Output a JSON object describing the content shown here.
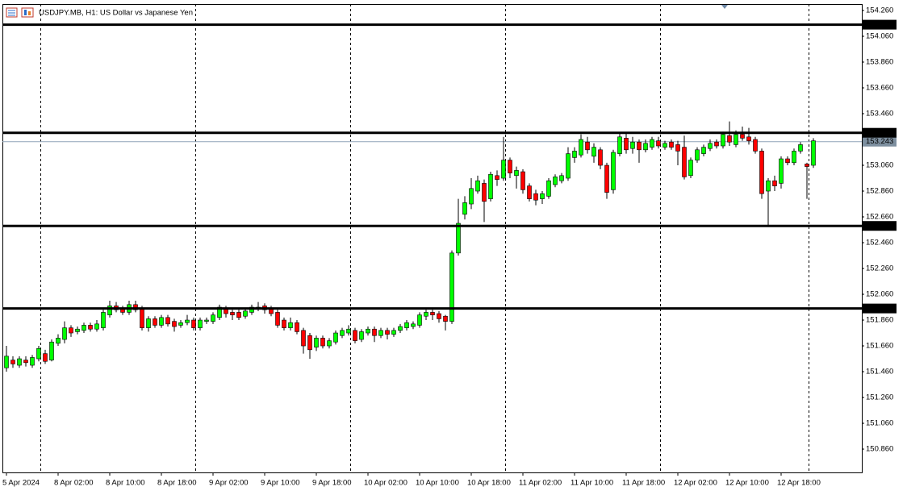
{
  "chart_data": {
    "type": "candlestick",
    "title": "USDJPY.MB, H1:  US Dollar vs Japanese Yen",
    "categories": [
      "5 Apr 2024",
      null,
      null,
      null,
      null,
      null,
      null,
      null,
      "8 Apr 02:00",
      null,
      null,
      null,
      null,
      null,
      null,
      null,
      "8 Apr 10:00",
      null,
      null,
      null,
      null,
      null,
      null,
      null,
      "8 Apr 18:00",
      null,
      null,
      null,
      null,
      null,
      null,
      null,
      "9 Apr 02:00",
      null,
      null,
      null,
      null,
      null,
      null,
      null,
      "9 Apr 10:00",
      null,
      null,
      null,
      null,
      null,
      null,
      null,
      "9 Apr 18:00",
      null,
      null,
      null,
      null,
      null,
      null,
      null,
      "10 Apr 02:00",
      null,
      null,
      null,
      null,
      null,
      null,
      null,
      "10 Apr 10:00",
      null,
      null,
      null,
      null,
      null,
      null,
      null,
      "10 Apr 18:00",
      null,
      null,
      null,
      null,
      null,
      null,
      null,
      "11 Apr 02:00",
      null,
      null,
      null,
      null,
      null,
      null,
      null,
      "11 Apr 10:00",
      null,
      null,
      null,
      null,
      null,
      null,
      null,
      "11 Apr 18:00",
      null,
      null,
      null,
      null,
      null,
      null,
      null,
      "12 Apr 02:00",
      null,
      null,
      null,
      null,
      null,
      null,
      null,
      "12 Apr 10:00",
      null,
      null,
      null,
      null,
      null,
      null,
      null,
      "12 Apr 18:00",
      null,
      null,
      null,
      null,
      null
    ],
    "open": [
      151.49,
      151.55,
      151.51,
      151.55,
      151.51,
      151.56,
      151.6,
      151.55,
      151.68,
      151.71,
      151.8,
      151.77,
      151.78,
      151.82,
      151.79,
      151.8,
      151.9,
      151.97,
      151.95,
      151.92,
      151.98,
      151.95,
      151.8,
      151.87,
      151.82,
      151.88,
      151.85,
      151.82,
      151.84,
      151.86,
      151.8,
      151.85,
      151.85,
      151.88,
      151.95,
      151.92,
      151.92,
      151.89,
      151.92,
      151.95,
      151.97,
      151.95,
      151.92,
      151.86,
      151.8,
      151.84,
      151.78,
      151.74,
      151.65,
      151.72,
      151.66,
      151.69,
      151.74,
      151.76,
      151.78,
      151.71,
      151.76,
      151.79,
      151.74,
      151.78,
      151.75,
      151.78,
      151.8,
      151.81,
      151.82,
      151.89,
      151.92,
      151.91,
      151.89,
      151.85,
      152.38,
      152.68,
      152.76,
      152.86,
      152.92,
      152.8,
      152.98,
      152.96,
      153.1,
      152.98,
      153.01,
      152.9,
      152.84,
      152.8,
      152.82,
      152.91,
      152.94,
      152.96,
      153.12,
      153.14,
      153.24,
      153.13,
      153.18,
      153.06,
      152.87,
      153.15,
      153.27,
      153.19,
      153.24,
      153.18,
      153.2,
      153.25,
      153.2,
      153.24,
      153.22,
      153.2,
      152.98,
      153.1,
      153.15,
      153.19,
      153.24,
      153.21,
      153.29,
      153.22,
      153.3,
      153.28,
      153.26,
      153.17,
      152.86,
      152.94,
      152.92,
      153.11,
      153.08,
      153.17,
      153.07,
      153.06
    ],
    "high": [
      151.66,
      151.58,
      151.58,
      151.58,
      151.59,
      151.66,
      151.63,
      151.71,
      151.75,
      151.85,
      151.82,
      151.81,
      151.84,
      151.84,
      151.86,
      151.94,
      152.01,
      152.0,
      151.97,
      152.01,
      152.01,
      151.97,
      151.89,
      151.89,
      151.9,
      151.9,
      151.87,
      151.86,
      151.9,
      151.88,
      151.88,
      151.88,
      151.92,
      151.98,
      151.97,
      151.94,
      151.94,
      151.95,
      151.98,
      152.0,
      151.99,
      151.97,
      151.94,
      151.88,
      151.88,
      151.86,
      151.8,
      151.76,
      151.74,
      151.74,
      151.72,
      151.78,
      151.8,
      151.82,
      151.8,
      151.79,
      151.81,
      151.81,
      151.8,
      151.8,
      151.8,
      151.83,
      151.86,
      151.85,
      151.92,
      151.94,
      151.94,
      151.93,
      151.9,
      152.4,
      152.8,
      152.82,
      152.96,
      152.98,
      152.95,
      153.01,
      153.02,
      153.28,
      153.12,
      153.05,
      153.03,
      152.92,
      152.87,
      152.86,
      152.96,
      152.99,
      153.0,
      153.2,
      153.2,
      153.3,
      153.28,
      153.23,
      153.2,
      153.08,
      153.18,
      153.31,
      153.31,
      153.28,
      153.26,
      153.26,
      153.28,
      153.28,
      153.25,
      153.26,
      153.25,
      153.29,
      153.12,
      153.2,
      153.22,
      153.26,
      153.26,
      153.32,
      153.4,
      153.33,
      153.36,
      153.35,
      153.28,
      153.19,
      152.96,
      152.98,
      153.13,
      153.13,
      153.19,
      153.24,
      153.08,
      153.27
    ],
    "low": [
      151.46,
      151.49,
      151.49,
      151.5,
      151.49,
      151.54,
      151.52,
      151.54,
      151.66,
      151.68,
      151.73,
      151.75,
      151.76,
      151.77,
      151.77,
      151.78,
      151.88,
      151.92,
      151.9,
      151.9,
      151.92,
      151.78,
      151.77,
      151.8,
      151.8,
      151.81,
      151.77,
      151.8,
      151.82,
      151.78,
      151.78,
      151.83,
      151.83,
      151.86,
      151.88,
      151.86,
      151.86,
      151.87,
      151.9,
      151.93,
      151.91,
      151.89,
      151.8,
      151.78,
      151.78,
      151.75,
      151.6,
      151.56,
      151.62,
      151.64,
      151.64,
      151.67,
      151.72,
      151.74,
      151.68,
      151.69,
      151.74,
      151.69,
      151.72,
      151.71,
      151.73,
      151.76,
      151.78,
      151.79,
      151.8,
      151.86,
      151.86,
      151.84,
      151.78,
      151.83,
      152.36,
      152.64,
      152.72,
      152.84,
      152.62,
      152.78,
      152.9,
      152.94,
      152.96,
      152.88,
      152.84,
      152.78,
      152.75,
      152.76,
      152.8,
      152.89,
      152.92,
      152.94,
      153.08,
      153.12,
      153.15,
      153.08,
      153.03,
      152.8,
      152.84,
      153.13,
      153.15,
      153.15,
      153.08,
      153.16,
      153.18,
      153.19,
      153.18,
      153.18,
      153.06,
      152.95,
      152.96,
      153.08,
      153.13,
      153.17,
      153.19,
      153.19,
      153.21,
      153.2,
      153.25,
      153.22,
      153.15,
      152.8,
      152.59,
      152.86,
      152.88,
      153.06,
      153.06,
      153.15,
      152.8,
      153.04
    ],
    "close": [
      151.58,
      151.52,
      151.56,
      151.53,
      151.57,
      151.64,
      151.54,
      151.69,
      151.72,
      151.8,
      151.76,
      151.79,
      151.82,
      151.79,
      151.83,
      151.92,
      151.97,
      151.94,
      151.92,
      151.98,
      151.94,
      151.8,
      151.87,
      151.82,
      151.88,
      151.83,
      151.81,
      151.84,
      151.86,
      151.8,
      151.86,
      151.86,
      151.9,
      151.96,
      151.91,
      151.9,
      151.88,
      151.93,
      151.96,
      151.96,
      151.94,
      151.91,
      151.82,
      151.8,
      151.84,
      151.77,
      151.66,
      151.63,
      151.72,
      151.66,
      151.7,
      151.76,
      151.78,
      151.79,
      151.7,
      151.77,
      151.79,
      151.74,
      151.78,
      151.75,
      151.78,
      151.81,
      151.84,
      151.83,
      151.9,
      151.92,
      151.9,
      151.87,
      151.85,
      152.38,
      152.61,
      152.77,
      152.88,
      152.94,
      152.78,
      152.99,
      152.95,
      153.1,
      153.0,
      153.02,
      152.87,
      152.8,
      152.79,
      152.84,
      152.94,
      152.97,
      152.98,
      153.15,
      153.17,
      153.26,
      153.18,
      153.2,
      153.06,
      152.85,
      153.16,
      153.28,
      153.18,
      153.24,
      153.18,
      153.23,
      153.26,
      153.21,
      153.23,
      153.2,
      153.17,
      152.97,
      153.1,
      153.18,
      153.2,
      153.23,
      153.21,
      153.3,
      153.24,
      153.3,
      153.27,
      153.25,
      153.17,
      152.84,
      152.94,
      152.9,
      153.11,
      153.08,
      153.17,
      153.22,
      153.05,
      153.25
    ],
    "up_color": "#00ff00",
    "down_color": "#ff0000",
    "ylim": [
      150.679,
      154.31
    ],
    "yticks": [
      {
        "value": 154.26,
        "label": "154.260"
      },
      {
        "value": 154.06,
        "label": "154.060"
      },
      {
        "value": 153.86,
        "label": "153.860"
      },
      {
        "value": 153.66,
        "label": "153.660"
      },
      {
        "value": 153.46,
        "label": "153.460"
      },
      {
        "value": 153.26,
        "label": "153.260"
      },
      {
        "value": 153.06,
        "label": "153.060"
      },
      {
        "value": 152.86,
        "label": "152.860"
      },
      {
        "value": 152.66,
        "label": "152.660"
      },
      {
        "value": 152.46,
        "label": "152.460"
      },
      {
        "value": 152.26,
        "label": "152.260"
      },
      {
        "value": 152.06,
        "label": "152.060"
      },
      {
        "value": 151.86,
        "label": "151.860"
      },
      {
        "value": 151.66,
        "label": "151.660"
      },
      {
        "value": 151.46,
        "label": "151.460"
      },
      {
        "value": 151.26,
        "label": "151.260"
      },
      {
        "value": 151.06,
        "label": "151.060"
      },
      {
        "value": 150.86,
        "label": "150.860"
      }
    ],
    "levels": [
      {
        "value": 154.15,
        "label": "154.150"
      },
      {
        "value": 153.312,
        "label": "153.312"
      },
      {
        "value": 152.59,
        "label": "152.590"
      },
      {
        "value": 151.95,
        "label": "151.950"
      }
    ],
    "current_price": {
      "value": 153.243,
      "label": "153.243"
    }
  }
}
